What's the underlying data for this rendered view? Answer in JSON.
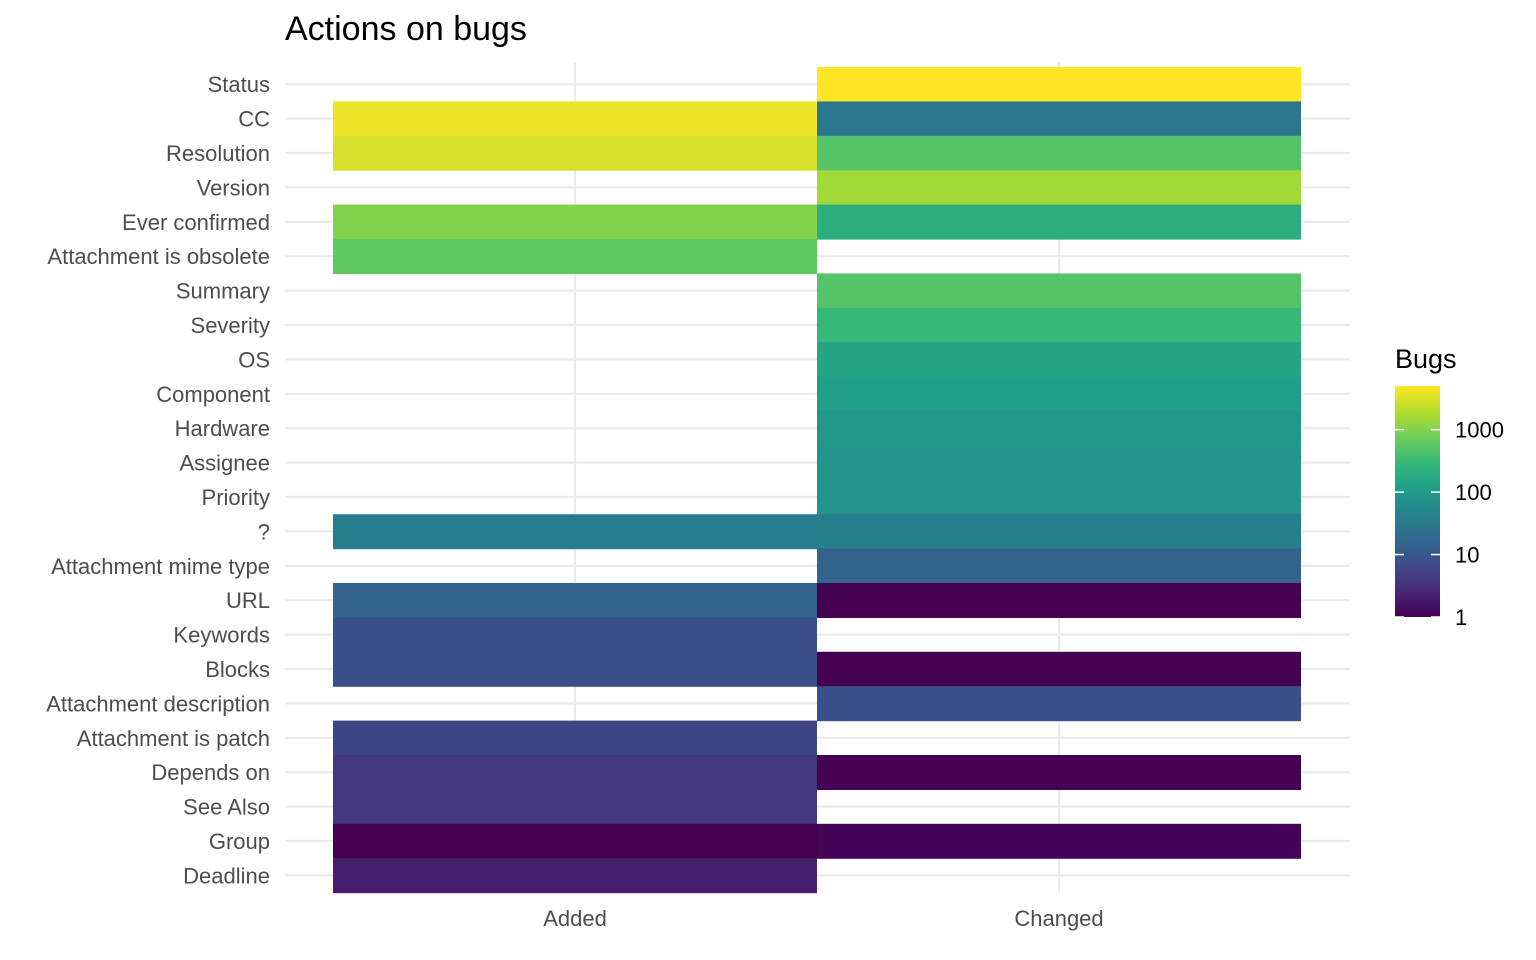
{
  "chart_data": {
    "type": "heatmap",
    "title": "Actions on bugs",
    "xlabel": "",
    "ylabel": "",
    "x_categories": [
      "Added",
      "Changed"
    ],
    "y_categories": [
      "Status",
      "CC",
      "Resolution",
      "Version",
      "Ever confirmed",
      "Attachment is obsolete",
      "Summary",
      "Severity",
      "OS",
      "Component",
      "Hardware",
      "Assignee",
      "Priority",
      "?",
      "Attachment mime type",
      "URL",
      "Keywords",
      "Blocks",
      "Attachment description",
      "Attachment is patch",
      "Depends on",
      "See Also",
      "Group",
      "Deadline"
    ],
    "cells": [
      {
        "y": "Status",
        "x": "Changed",
        "value": 5000
      },
      {
        "y": "CC",
        "x": "Added",
        "value": 4000
      },
      {
        "y": "CC",
        "x": "Changed",
        "value": 30
      },
      {
        "y": "Resolution",
        "x": "Added",
        "value": 3000
      },
      {
        "y": "Resolution",
        "x": "Changed",
        "value": 500
      },
      {
        "y": "Version",
        "x": "Changed",
        "value": 1500
      },
      {
        "y": "Ever confirmed",
        "x": "Added",
        "value": 1000
      },
      {
        "y": "Ever confirmed",
        "x": "Changed",
        "value": 200
      },
      {
        "y": "Attachment is obsolete",
        "x": "Added",
        "value": 600
      },
      {
        "y": "Summary",
        "x": "Changed",
        "value": 500
      },
      {
        "y": "Severity",
        "x": "Changed",
        "value": 300
      },
      {
        "y": "OS",
        "x": "Changed",
        "value": 150
      },
      {
        "y": "Component",
        "x": "Changed",
        "value": 120
      },
      {
        "y": "Hardware",
        "x": "Changed",
        "value": 90
      },
      {
        "y": "Assignee",
        "x": "Changed",
        "value": 80
      },
      {
        "y": "Priority",
        "x": "Changed",
        "value": 80
      },
      {
        "y": "?",
        "x": "Added",
        "value": 35
      },
      {
        "y": "?",
        "x": "Changed",
        "value": 40
      },
      {
        "y": "Attachment mime type",
        "x": "Changed",
        "value": 15
      },
      {
        "y": "URL",
        "x": "Added",
        "value": 15
      },
      {
        "y": "URL",
        "x": "Changed",
        "value": 1
      },
      {
        "y": "Keywords",
        "x": "Added",
        "value": 8
      },
      {
        "y": "Blocks",
        "x": "Added",
        "value": 8
      },
      {
        "y": "Blocks",
        "x": "Changed",
        "value": 1
      },
      {
        "y": "Attachment description",
        "x": "Changed",
        "value": 8
      },
      {
        "y": "Attachment is patch",
        "x": "Added",
        "value": 6
      },
      {
        "y": "Depends on",
        "x": "Added",
        "value": 4
      },
      {
        "y": "Depends on",
        "x": "Changed",
        "value": 1
      },
      {
        "y": "See Also",
        "x": "Added",
        "value": 4
      },
      {
        "y": "Group",
        "x": "Added",
        "value": 1
      },
      {
        "y": "Group",
        "x": "Changed",
        "value": 1.1
      },
      {
        "y": "Deadline",
        "x": "Added",
        "value": 2
      }
    ],
    "color_scale": {
      "name": "viridis",
      "log": true,
      "limits": [
        1,
        5000
      ],
      "colors": [
        "#440154",
        "#482878",
        "#3E4A89",
        "#31688E",
        "#26828E",
        "#1F9E89",
        "#35B779",
        "#6DCD59",
        "#B4DE2C",
        "#FDE725"
      ]
    },
    "legend": {
      "title": "Bugs",
      "position": "right",
      "breaks": [
        1,
        10,
        100,
        1000
      ],
      "labels": [
        "1",
        "10",
        "100",
        "1000"
      ]
    },
    "grid": true
  }
}
